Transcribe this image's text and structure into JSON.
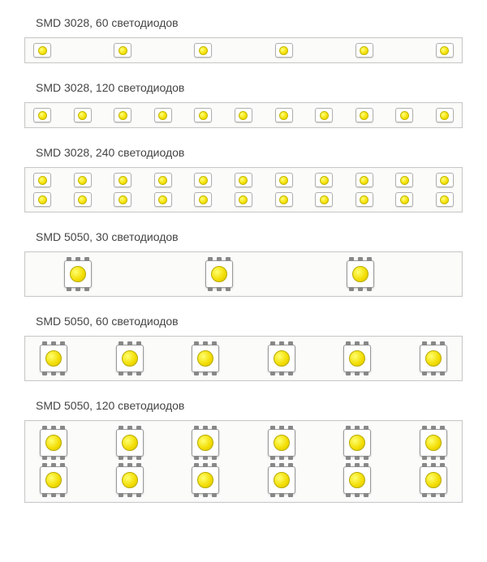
{
  "background_color": "#ffffff",
  "strip_border_color": "#c8c8c8",
  "strip_background": "#fbfbf9",
  "label_color": "#444444",
  "label_fontsize": 14,
  "led_colors": {
    "body": "#ffffff",
    "body_border": "#b0b0b0",
    "emitter_gradient": [
      "#ffff80",
      "#f5e000",
      "#d8c400"
    ],
    "emitter_border": "#c4b800",
    "pin": "#888888"
  },
  "sections": [
    {
      "label": "SMD 3028, 60 светодиодов",
      "led_type": "3028",
      "rows": 1,
      "leds_per_row": 6
    },
    {
      "label": "SMD 3028, 120 светодиодов",
      "led_type": "3028",
      "rows": 1,
      "leds_per_row": 11
    },
    {
      "label": "SMD 3028, 240 светодиодов",
      "led_type": "3028",
      "rows": 2,
      "leds_per_row": 11
    },
    {
      "label": "SMD 5050, 30 светодиодов",
      "led_type": "5050",
      "rows": 1,
      "leds_per_row": 3
    },
    {
      "label": "SMD 5050, 60 светодиодов",
      "led_type": "5050",
      "rows": 1,
      "leds_per_row": 6
    },
    {
      "label": "SMD 5050, 120 светодиодов",
      "led_type": "5050",
      "rows": 2,
      "leds_per_row": 6
    }
  ]
}
